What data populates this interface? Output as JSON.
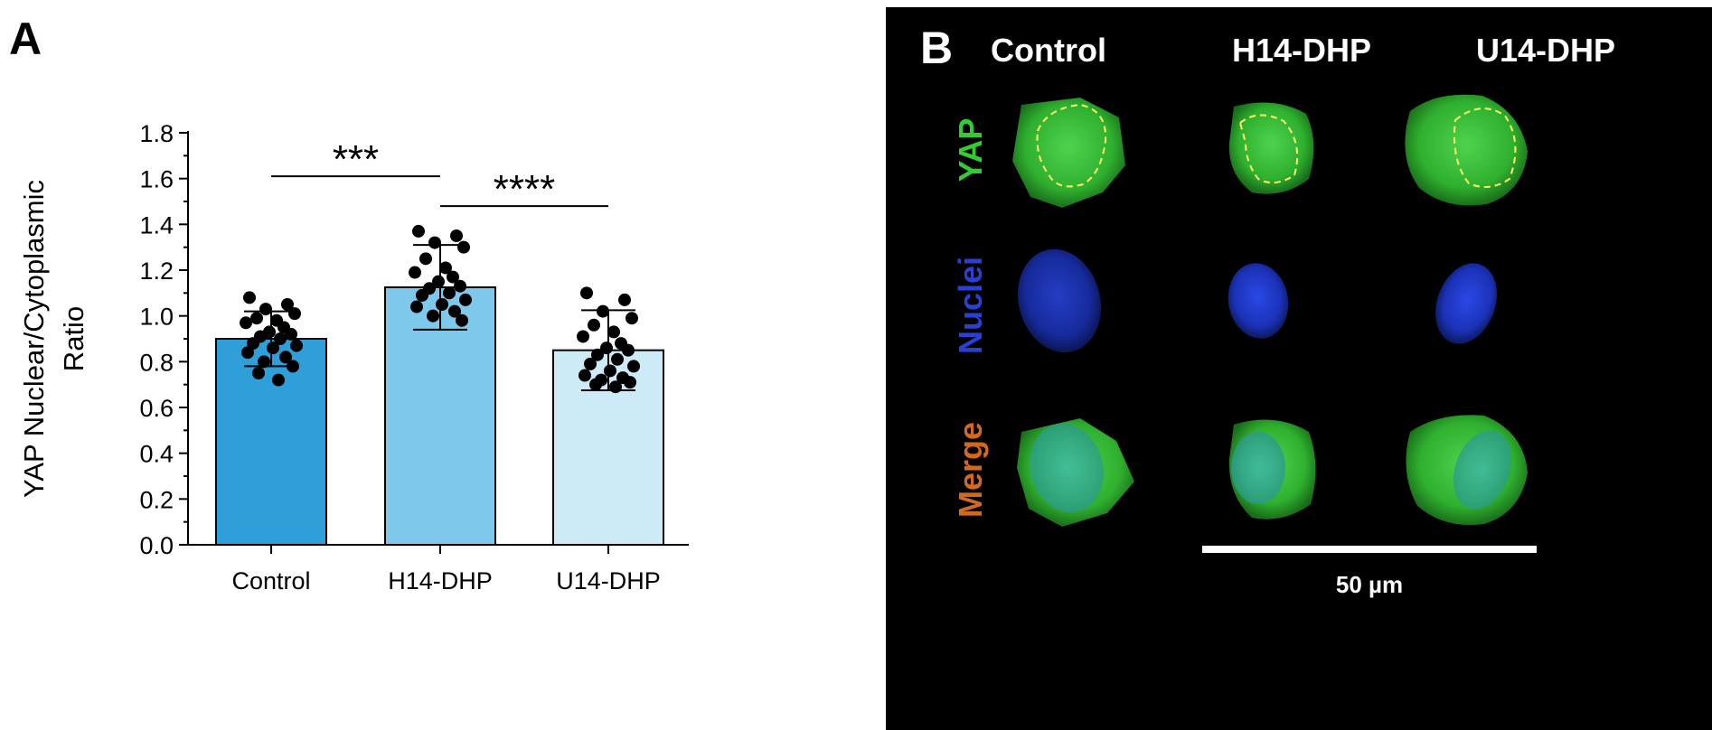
{
  "panel_a": {
    "label": "A",
    "chart_data": {
      "type": "bar",
      "categories": [
        "Control",
        "H14-DHP",
        "U14-DHP"
      ],
      "values": [
        0.9,
        1.125,
        0.85
      ],
      "error": [
        0.12,
        0.185,
        0.175
      ],
      "bar_colors": [
        "#2e9fd8",
        "#7ec8eb",
        "#cdebf6"
      ],
      "points": [
        [
          1.08,
          1.05,
          1.03,
          1.01,
          0.99,
          0.98,
          0.97,
          0.95,
          0.93,
          0.92,
          0.91,
          0.9,
          0.88,
          0.87,
          0.86,
          0.84,
          0.82,
          0.8,
          0.78,
          0.75,
          0.72
        ],
        [
          1.37,
          1.35,
          1.32,
          1.3,
          1.25,
          1.21,
          1.19,
          1.17,
          1.15,
          1.13,
          1.12,
          1.1,
          1.09,
          1.07,
          1.05,
          1.04,
          1.02,
          1.0,
          0.98
        ],
        [
          1.1,
          1.07,
          1.02,
          0.99,
          0.96,
          0.93,
          0.91,
          0.88,
          0.86,
          0.85,
          0.83,
          0.81,
          0.79,
          0.78,
          0.76,
          0.74,
          0.73,
          0.72,
          0.71,
          0.7,
          0.69
        ]
      ],
      "ylabel_line1": "YAP Nuclear/Cytoplasmic",
      "ylabel_line2": "Ratio",
      "xlabel": "",
      "ylim": [
        0,
        1.8
      ],
      "yticks": [
        "0.0",
        "0.2",
        "0.4",
        "0.6",
        "0.8",
        "1.0",
        "1.2",
        "1.4",
        "1.6",
        "1.8"
      ],
      "significance": [
        {
          "from": 0,
          "to": 1,
          "label": "***",
          "y": 1.61
        },
        {
          "from": 1,
          "to": 2,
          "label": "****",
          "y": 1.48
        }
      ]
    }
  },
  "panel_b": {
    "label": "B",
    "columns": [
      "Control",
      "H14-DHP",
      "U14-DHP"
    ],
    "rows": [
      {
        "label": "YAP",
        "color": "#33cc33"
      },
      {
        "label": "Nuclei",
        "color": "#2a3fd6"
      },
      {
        "label": "Merge",
        "color": "#d2691e"
      }
    ],
    "scale_bar_label": "50 µm"
  }
}
